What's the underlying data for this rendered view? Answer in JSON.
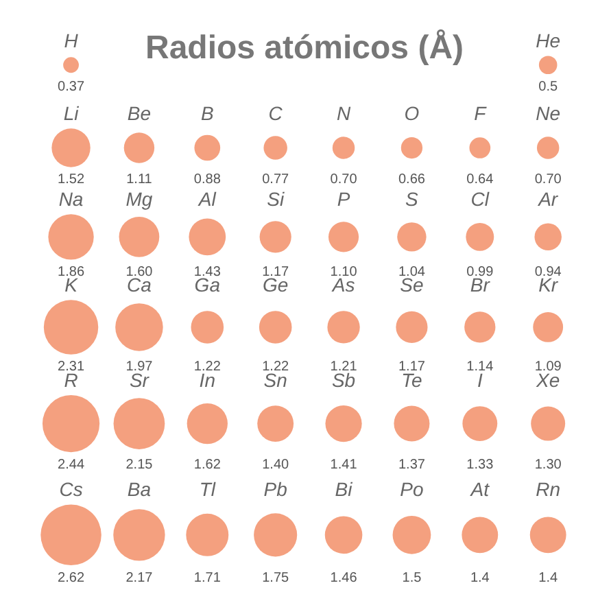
{
  "chart_data": {
    "type": "other",
    "title": "Radios atómicos (Å)",
    "color": "#f4a07f",
    "categories": [
      null,
      null,
      null,
      null,
      null,
      null,
      null,
      null,
      null,
      null,
      null,
      null,
      null,
      null,
      null,
      null,
      null,
      null,
      null,
      null,
      null,
      null,
      null,
      null,
      null,
      null,
      null,
      null,
      null,
      null,
      null,
      null,
      null,
      null,
      null,
      null,
      null,
      null,
      null,
      null,
      null,
      null,
      null,
      null,
      null,
      null,
      null,
      null
    ],
    "annotations": [
      "H",
      "He",
      "Li",
      "Be",
      "B",
      "C",
      "N",
      "O",
      "F",
      "Ne",
      "Na",
      "Mg",
      "Al",
      "Si",
      "P",
      "S",
      "Cl",
      "Ar",
      "K",
      "Ca",
      "Ga",
      "Ge",
      "As",
      "Se",
      "Br",
      "Kr",
      "R",
      "Sr",
      "In",
      "Sn",
      "Sb",
      "Te",
      "I",
      "Xe",
      "Cs",
      "Ba",
      "Tl",
      "Pb",
      "Bi",
      "Po",
      "At",
      "Rn"
    ],
    "values": [
      0.37,
      null,
      null,
      null,
      null,
      null,
      null,
      0.5,
      1.52,
      1.11,
      0.88,
      0.77,
      0.7,
      0.66,
      0.64,
      0.7,
      1.86,
      1.6,
      1.43,
      1.17,
      1.1,
      1.04,
      0.99,
      0.94,
      2.31,
      1.97,
      1.22,
      1.22,
      1.21,
      1.17,
      1.14,
      1.09,
      2.44,
      2.15,
      1.62,
      1.4,
      1.41,
      1.37,
      1.33,
      1.3,
      2.62,
      2.17,
      1.71,
      1.75,
      1.46,
      1.5,
      1.4,
      1.4
    ],
    "value_labels": [
      "0.37",
      null,
      null,
      null,
      null,
      null,
      null,
      "0.5",
      "1.52",
      "1.11",
      "0.88",
      "0.77",
      "0.70",
      "0.66",
      "0.64",
      "0.70",
      "1.86",
      "1.60",
      "1.43",
      "1.17",
      "1.10",
      "1.04",
      "0.99",
      "0.94",
      "2.31",
      "1.97",
      "1.22",
      "1.22",
      "1.21",
      "1.17",
      "1.14",
      "1.09",
      "2.44",
      "2.15",
      "1.62",
      "1.40",
      "1.41",
      "1.37",
      "1.33",
      "1.30",
      "2.62",
      "2.17",
      "1.71",
      "1.75",
      "1.46",
      "1.5",
      "1.4",
      "1.4"
    ]
  }
}
